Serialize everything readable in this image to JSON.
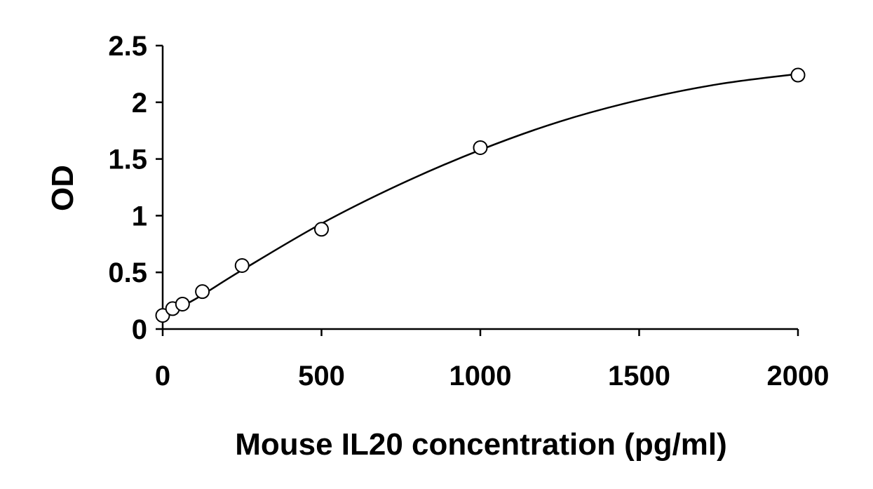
{
  "chart_data": {
    "type": "scatter",
    "xlabel": "Mouse IL20 concentration (pg/ml)",
    "ylabel": "OD",
    "xlim": [
      0,
      2000
    ],
    "ylim": [
      0,
      2.5
    ],
    "x_ticks": [
      0,
      500,
      1000,
      1500,
      2000
    ],
    "y_ticks": [
      0,
      0.5,
      1,
      1.5,
      2,
      2.5
    ],
    "x_tick_labels": [
      "0",
      "500",
      "1000",
      "1500",
      "2000"
    ],
    "y_tick_labels": [
      "0",
      "0.5",
      "1",
      "1.5",
      "2",
      "2.5"
    ],
    "grid": false,
    "series": [
      {
        "marker": "open-circle",
        "x": [
          0,
          31.25,
          62.5,
          125,
          250,
          500,
          1000,
          2000
        ],
        "y": [
          0.12,
          0.18,
          0.22,
          0.33,
          0.56,
          0.88,
          1.6,
          2.24
        ]
      }
    ],
    "fit": {
      "type": "polynomial",
      "x": [
        0,
        100,
        250,
        500,
        750,
        1000,
        1250,
        1500,
        1750,
        2000
      ],
      "y": [
        0.12,
        0.26,
        0.52,
        0.93,
        1.28,
        1.58,
        1.83,
        2.02,
        2.16,
        2.25
      ]
    }
  }
}
